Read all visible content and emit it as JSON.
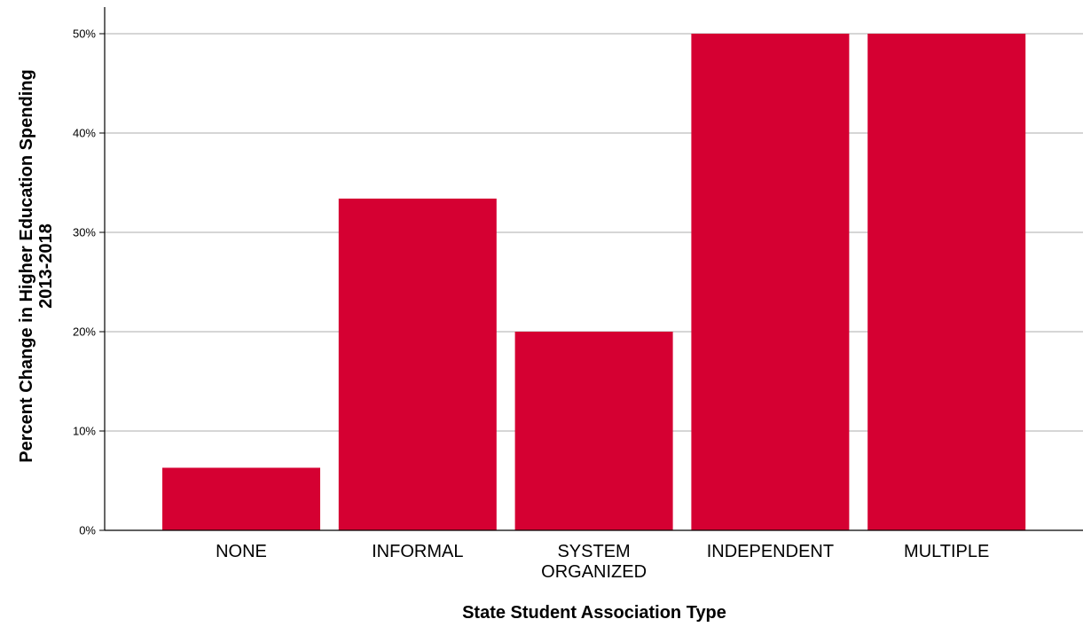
{
  "chart_data": {
    "type": "bar",
    "categories": [
      [
        "NONE"
      ],
      [
        "INFORMAL"
      ],
      [
        "SYSTEM",
        "ORGANIZED"
      ],
      [
        "INDEPENDENT"
      ],
      [
        "MULTIPLE"
      ]
    ],
    "values": [
      6.3,
      33.4,
      20.0,
      50.0,
      50.0
    ],
    "title": "",
    "xlabel": "State Student Association Type",
    "ylabel": [
      "Percent Change in Higher Education Spending",
      "2013-2018"
    ],
    "ylim": [
      0,
      50
    ],
    "yticks": [
      0,
      10,
      20,
      30,
      40,
      50
    ],
    "ytick_labels": [
      "0%",
      "10%",
      "20%",
      "30%",
      "40%",
      "50%"
    ],
    "grid": true,
    "legend": "none",
    "colors": {
      "bar": "#D50032",
      "grid": "#BDBDBD",
      "axis": "#000000"
    }
  }
}
